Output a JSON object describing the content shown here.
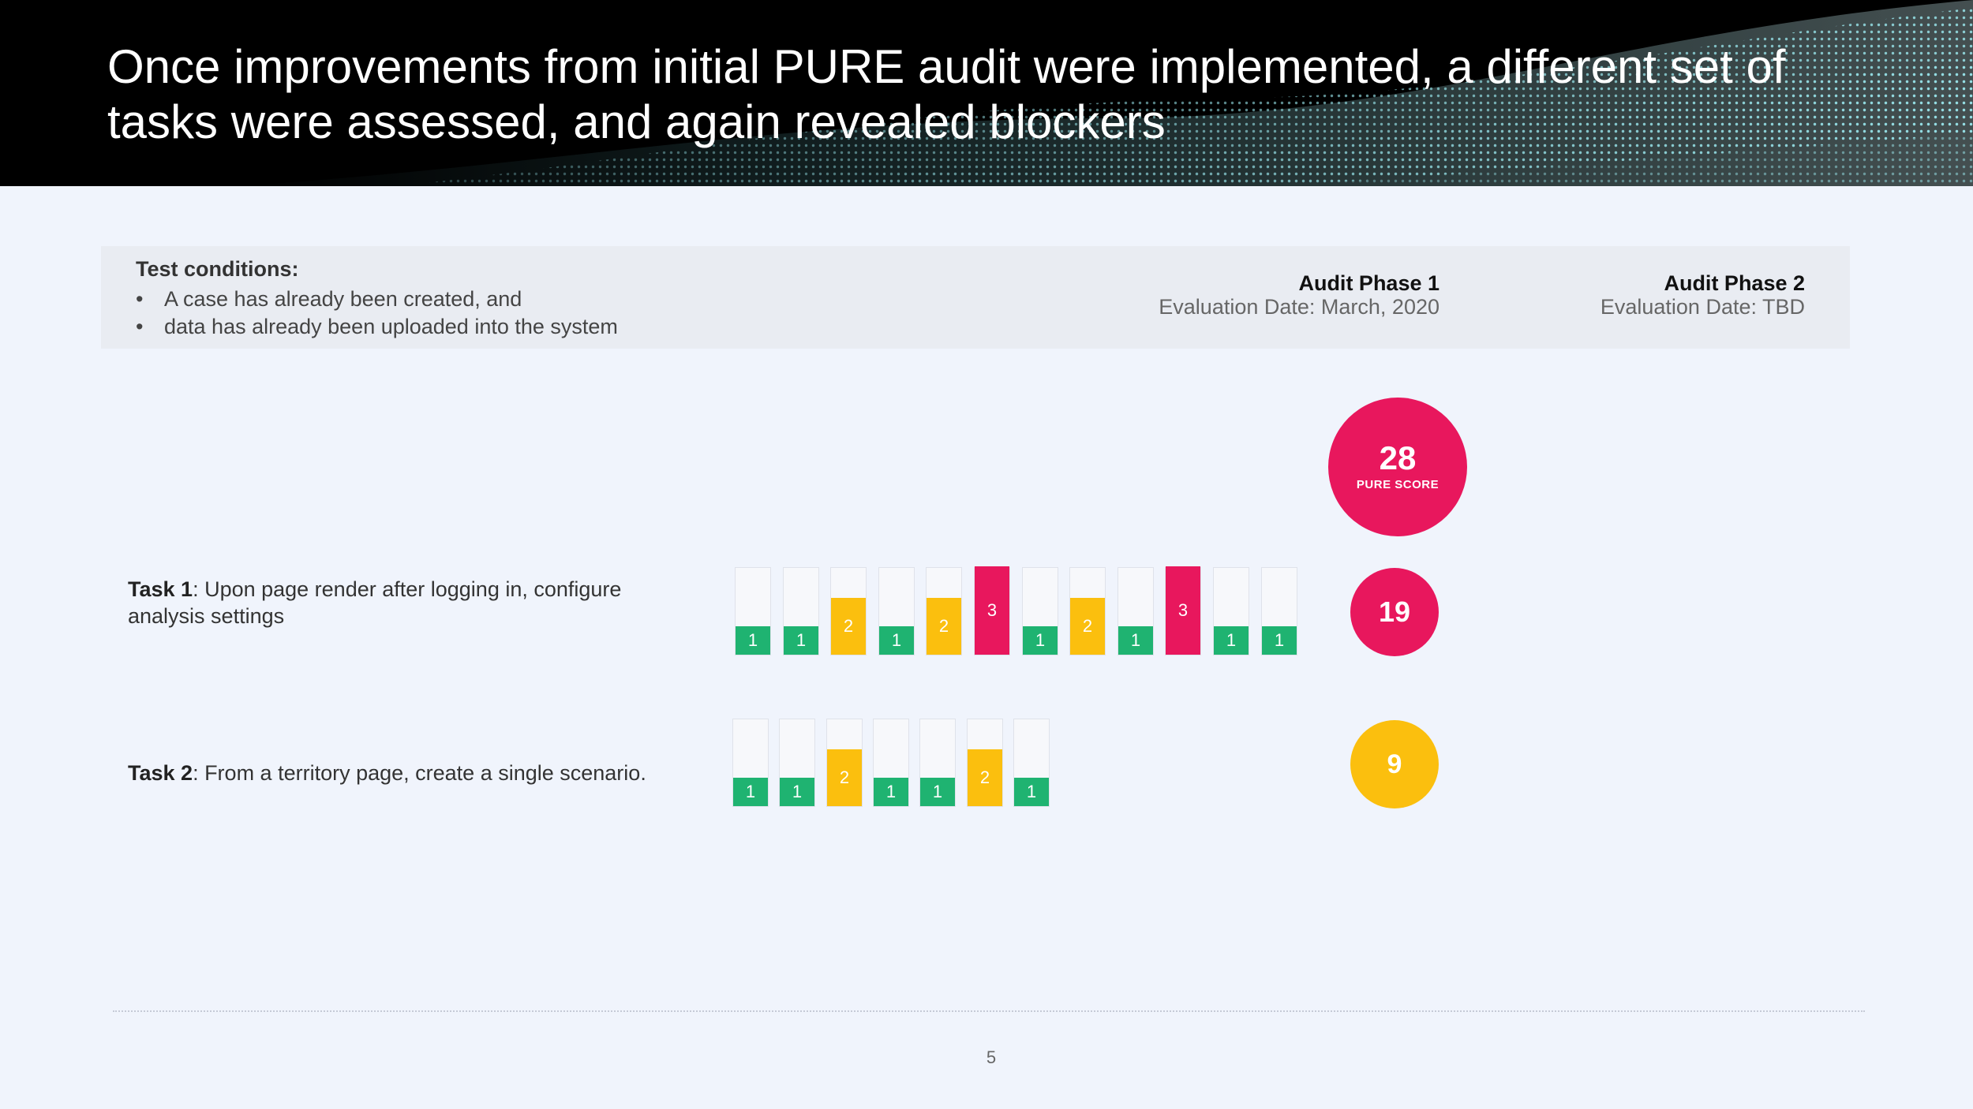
{
  "header": {
    "title": "Once improvements from initial PURE audit were implemented, a different set of tasks were assessed, and again revealed blockers"
  },
  "conditions": {
    "title": "Test conditions:",
    "items": [
      "A case has already been created, and",
      "data has already been uploaded into the system"
    ]
  },
  "phases": [
    {
      "title": "Audit Phase 1",
      "date": "Evaluation Date: March, 2020"
    },
    {
      "title": "Audit Phase 2",
      "date": "Evaluation Date: TBD"
    }
  ],
  "pure_score": {
    "value": "28",
    "label": "PURE SCORE"
  },
  "tasks": [
    {
      "name": "Task 1",
      "description": ": Upon page render after logging in, configure analysis settings",
      "steps": [
        1,
        1,
        2,
        1,
        2,
        3,
        1,
        2,
        1,
        3,
        1,
        1
      ],
      "score": "19"
    },
    {
      "name": "Task 2",
      "description": ": From a territory page, create a single scenario.",
      "steps": [
        1,
        1,
        2,
        1,
        1,
        2,
        1
      ],
      "score": "9"
    }
  ],
  "colors": {
    "green": "#1fb371",
    "yellow": "#fbbf0e",
    "red": "#e8175d"
  },
  "footer": {
    "page_number": "5"
  }
}
